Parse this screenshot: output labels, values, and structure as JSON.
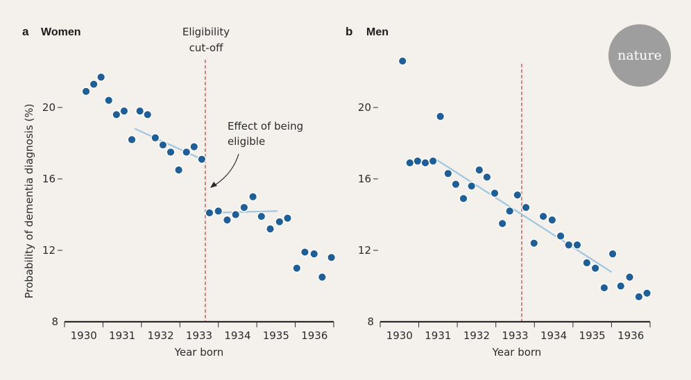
{
  "logo": {
    "text": "nature",
    "color": "#9e9e9e"
  },
  "colors": {
    "background": "#f4f1ec",
    "point": "#1f5f96",
    "point_halo": "#ffffff",
    "trend": "#9ec6df",
    "cutoff": "#c0474f",
    "axis": "#2a2a2a"
  },
  "chart_data": [
    {
      "type": "scatter",
      "panel": "a",
      "title": "Women",
      "xlabel": "Year born",
      "ylabel": "Probability of dementia diagnosis (%)",
      "xlim": [
        1930,
        1937
      ],
      "ylim": [
        8,
        23
      ],
      "xticks": [
        1930,
        1931,
        1932,
        1933,
        1934,
        1935,
        1936
      ],
      "xtick_labels": [
        "1930",
        "1931",
        "1932",
        "1933",
        "1934",
        "1935",
        "1936"
      ],
      "yticks": [
        8,
        12,
        16,
        20
      ],
      "ytick_labels": [
        "8",
        "12",
        "16",
        "20"
      ],
      "grid": false,
      "cutoff": {
        "x": 1933.66,
        "label_lines": [
          "Eligibility",
          "cut-off"
        ]
      },
      "annotation": {
        "lines": [
          "Effect of being",
          "eligible"
        ]
      },
      "points": [
        [
          1930.56,
          20.9
        ],
        [
          1930.76,
          21.3
        ],
        [
          1930.95,
          21.7
        ],
        [
          1931.15,
          20.4
        ],
        [
          1931.35,
          19.6
        ],
        [
          1931.55,
          19.8
        ],
        [
          1931.75,
          18.2
        ],
        [
          1931.96,
          19.8
        ],
        [
          1932.16,
          19.6
        ],
        [
          1932.36,
          18.3
        ],
        [
          1932.56,
          17.9
        ],
        [
          1932.76,
          17.5
        ],
        [
          1932.97,
          16.5
        ],
        [
          1933.17,
          17.5
        ],
        [
          1933.37,
          17.8
        ],
        [
          1933.57,
          17.1
        ],
        [
          1933.77,
          14.1
        ],
        [
          1934.0,
          14.2
        ],
        [
          1934.23,
          13.7
        ],
        [
          1934.45,
          14.0
        ],
        [
          1934.67,
          14.4
        ],
        [
          1934.9,
          15.0
        ],
        [
          1935.12,
          13.9
        ],
        [
          1935.35,
          13.2
        ],
        [
          1935.59,
          13.6
        ],
        [
          1935.8,
          13.8
        ],
        [
          1936.04,
          11.0
        ],
        [
          1936.25,
          11.9
        ],
        [
          1936.49,
          11.8
        ],
        [
          1936.7,
          10.5
        ],
        [
          1936.94,
          11.6
        ]
      ],
      "trend_lines": [
        [
          [
            1931.84,
            18.8
          ],
          [
            1933.57,
            17.1
          ]
        ],
        [
          [
            1933.77,
            14.1
          ],
          [
            1935.52,
            14.2
          ]
        ]
      ]
    },
    {
      "type": "scatter",
      "panel": "b",
      "title": "Men",
      "xlabel": "Year born",
      "ylabel": "",
      "xlim": [
        1930,
        1937
      ],
      "ylim": [
        8,
        23
      ],
      "xticks": [
        1930,
        1931,
        1932,
        1933,
        1934,
        1935,
        1936
      ],
      "xtick_labels": [
        "1930",
        "1931",
        "1932",
        "1933",
        "1934",
        "1935",
        "1936"
      ],
      "yticks": [
        8,
        12,
        16,
        20
      ],
      "ytick_labels": [
        "8",
        "12",
        "16",
        "20"
      ],
      "grid": false,
      "cutoff": {
        "x": 1933.67
      },
      "points": [
        [
          1930.58,
          22.6
        ],
        [
          1930.77,
          16.9
        ],
        [
          1930.97,
          17.0
        ],
        [
          1931.17,
          16.9
        ],
        [
          1931.37,
          17.0
        ],
        [
          1931.56,
          19.5
        ],
        [
          1931.76,
          16.3
        ],
        [
          1931.96,
          15.7
        ],
        [
          1932.16,
          14.9
        ],
        [
          1932.37,
          15.6
        ],
        [
          1932.57,
          16.5
        ],
        [
          1932.77,
          16.1
        ],
        [
          1932.97,
          15.2
        ],
        [
          1933.17,
          13.5
        ],
        [
          1933.36,
          14.2
        ],
        [
          1933.56,
          15.1
        ],
        [
          1933.78,
          14.4
        ],
        [
          1933.99,
          12.4
        ],
        [
          1934.23,
          13.9
        ],
        [
          1934.46,
          13.7
        ],
        [
          1934.68,
          12.8
        ],
        [
          1934.89,
          12.3
        ],
        [
          1935.11,
          12.3
        ],
        [
          1935.36,
          11.3
        ],
        [
          1935.58,
          11.0
        ],
        [
          1935.81,
          9.9
        ],
        [
          1936.03,
          11.8
        ],
        [
          1936.24,
          10.0
        ],
        [
          1936.47,
          10.5
        ],
        [
          1936.71,
          9.4
        ],
        [
          1936.92,
          9.6
        ]
      ],
      "trend_lines": [
        [
          [
            1931.37,
            17.2
          ],
          [
            1935.99,
            10.8
          ]
        ]
      ]
    }
  ]
}
